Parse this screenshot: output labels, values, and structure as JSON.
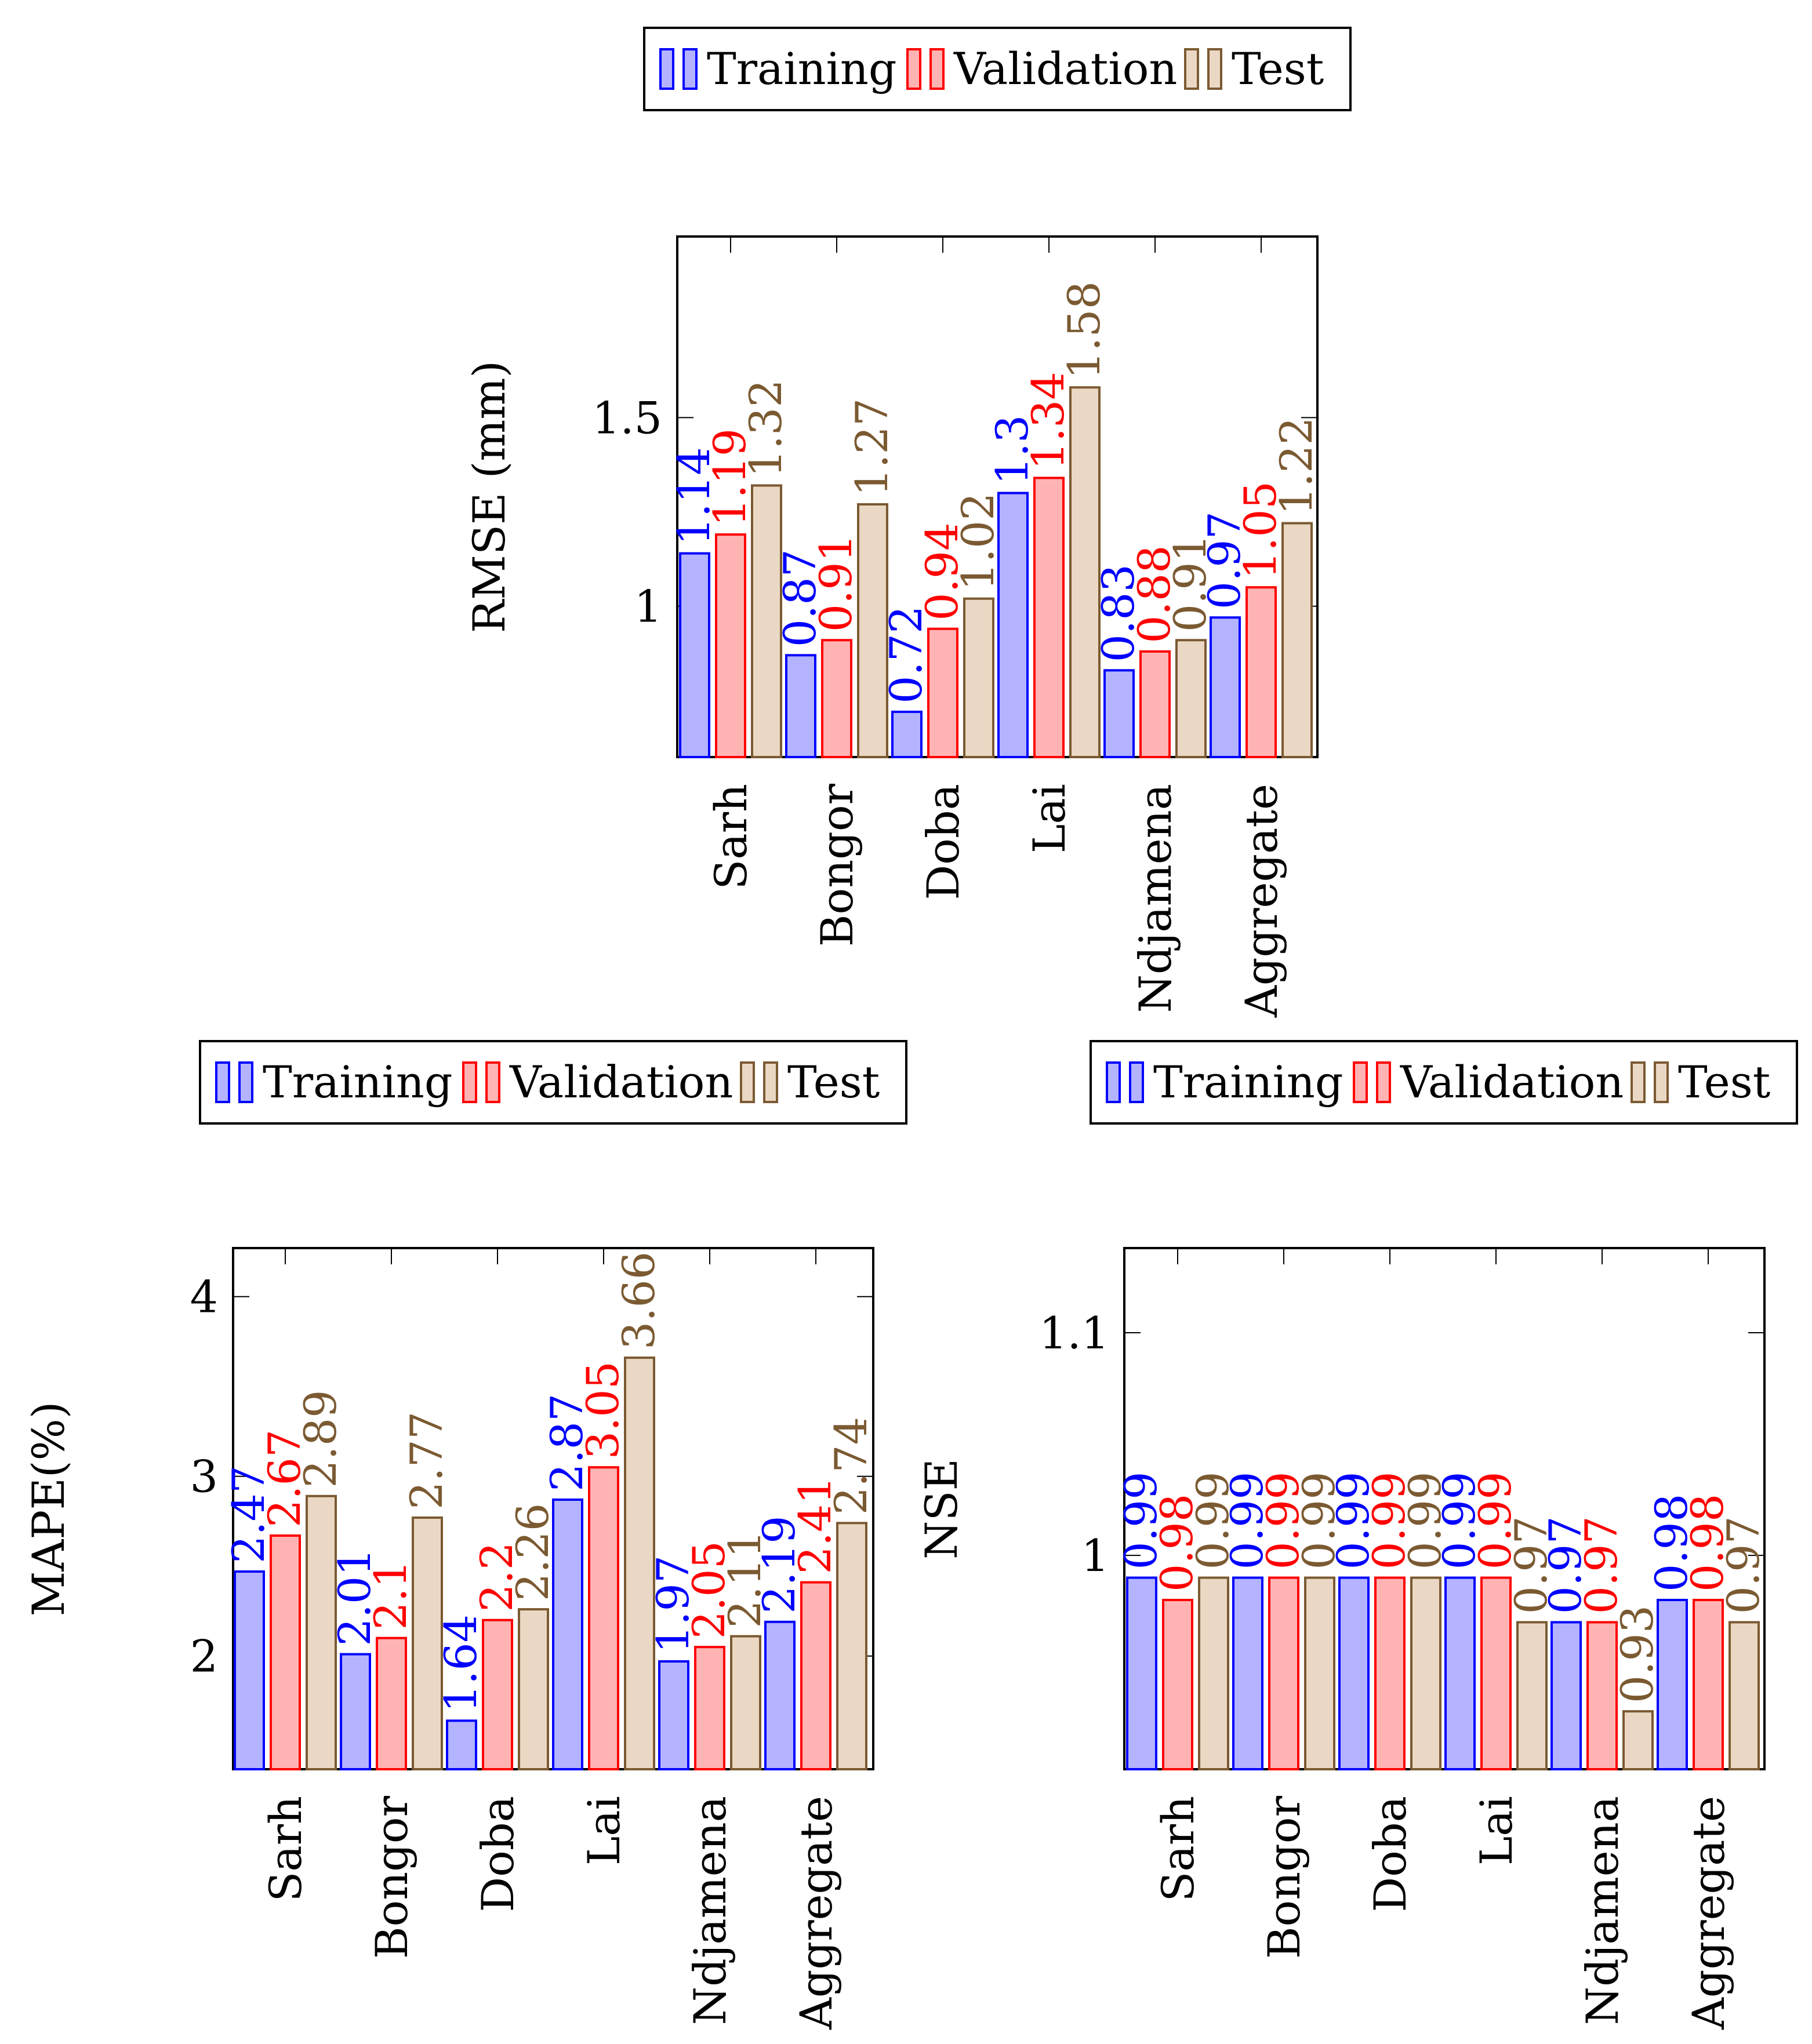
{
  "colors": {
    "training_stroke": "#0000ff",
    "training_fill": "#b3b3ff",
    "validation_stroke": "#ff0000",
    "validation_fill": "#ffb3b3",
    "test_stroke": "#7b5a32",
    "test_fill": "#ead8c4",
    "axis": "#000000",
    "background": "#ffffff"
  },
  "chart_data": [
    {
      "id": "rmse",
      "type": "bar",
      "title": "",
      "xlabel": "",
      "ylabel": "RMSE (mm)",
      "categories": [
        "Sarh",
        "Bongor",
        "Doba",
        "Lai",
        "Ndjamena",
        "Aggregate"
      ],
      "ylim": [
        0.6,
        1.98
      ],
      "yticks": [
        1,
        1.5
      ],
      "ytick_labels": [
        "1",
        "1.5"
      ],
      "legend": [
        "Training",
        "Validation",
        "Test"
      ],
      "legend_position": "top",
      "series": [
        {
          "name": "Training",
          "values": [
            1.14,
            0.87,
            0.72,
            1.3,
            0.83,
            0.97
          ],
          "labels": [
            "1.14",
            "0.87",
            "0.72",
            "1.3",
            "0.83",
            "0.97"
          ]
        },
        {
          "name": "Validation",
          "values": [
            1.19,
            0.91,
            0.94,
            1.34,
            0.88,
            1.05
          ],
          "labels": [
            "1.19",
            "0.91",
            "0.94",
            "1.34",
            "0.88",
            "1.05"
          ]
        },
        {
          "name": "Test",
          "values": [
            1.32,
            1.27,
            1.02,
            1.58,
            0.91,
            1.22
          ],
          "labels": [
            "1.32",
            "1.27",
            "1.02",
            "1.58",
            "0.91",
            "1.22"
          ]
        }
      ]
    },
    {
      "id": "mape",
      "type": "bar",
      "title": "",
      "xlabel": "",
      "ylabel": "MAPE(%)",
      "categories": [
        "Sarh",
        "Bongor",
        "Doba",
        "Lai",
        "Ndjamena",
        "Aggregate"
      ],
      "ylim": [
        1.37,
        4.27
      ],
      "yticks": [
        2,
        3,
        4
      ],
      "ytick_labels": [
        "2",
        "3",
        "4"
      ],
      "legend": [
        "Training",
        "Validation",
        "Test"
      ],
      "legend_position": "top",
      "series": [
        {
          "name": "Training",
          "values": [
            2.47,
            2.01,
            1.64,
            2.87,
            1.97,
            2.19
          ],
          "labels": [
            "2.47",
            "2.01",
            "1.64",
            "2.87",
            "1.97",
            "2.19"
          ]
        },
        {
          "name": "Validation",
          "values": [
            2.67,
            2.1,
            2.2,
            3.05,
            2.05,
            2.41
          ],
          "labels": [
            "2.67",
            "2.1",
            "2.2",
            "3.05",
            "2.05",
            "2.41"
          ]
        },
        {
          "name": "Test",
          "values": [
            2.89,
            2.77,
            2.26,
            3.66,
            2.11,
            2.74
          ],
          "labels": [
            "2.89",
            "2.77",
            "2.26",
            "3.66",
            "2.11",
            "2.74"
          ]
        }
      ]
    },
    {
      "id": "nse",
      "type": "bar",
      "title": "",
      "xlabel": "",
      "ylabel": "NSE",
      "categories": [
        "Sarh",
        "Bongor",
        "Doba",
        "Lai",
        "Ndjamena",
        "Aggregate"
      ],
      "ylim": [
        0.904,
        1.138
      ],
      "yticks": [
        1,
        1.1
      ],
      "ytick_labels": [
        "1",
        "1.1"
      ],
      "legend": [
        "Training",
        "Validation",
        "Test"
      ],
      "legend_position": "top",
      "series": [
        {
          "name": "Training",
          "values": [
            0.99,
            0.99,
            0.99,
            0.99,
            0.97,
            0.98
          ],
          "labels": [
            "0.99",
            "0.99",
            "0.99",
            "0.99",
            "0.97",
            "0.98"
          ]
        },
        {
          "name": "Validation",
          "values": [
            0.98,
            0.99,
            0.99,
            0.99,
            0.97,
            0.98
          ],
          "labels": [
            "0.98",
            "0.99",
            "0.99",
            "0.99",
            "0.97",
            "0.98"
          ]
        },
        {
          "name": "Test",
          "values": [
            0.99,
            0.99,
            0.99,
            0.97,
            0.93,
            0.97
          ],
          "labels": [
            "0.99",
            "0.99",
            "0.99",
            "0.97",
            "0.93",
            "0.97"
          ]
        }
      ]
    }
  ]
}
